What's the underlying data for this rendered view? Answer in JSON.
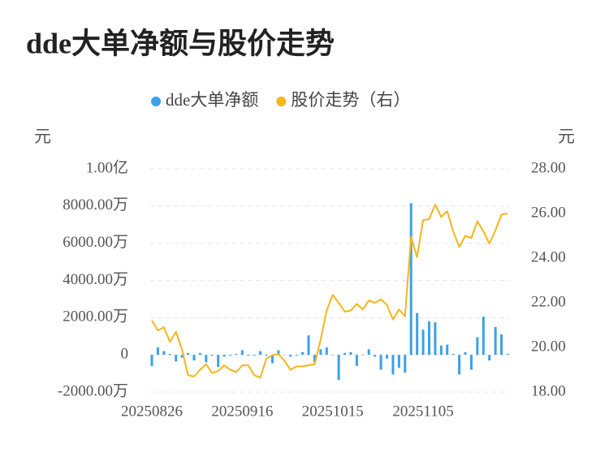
{
  "chart_data": {
    "type": "bar-line",
    "title": "dde大单净额与股价走势",
    "y_label": "元",
    "y2_label": "元",
    "categories": [
      "20250826",
      null,
      null,
      null,
      null,
      null,
      null,
      null,
      null,
      null,
      null,
      null,
      null,
      null,
      null,
      "20250916",
      null,
      null,
      null,
      null,
      null,
      null,
      null,
      null,
      null,
      null,
      null,
      null,
      null,
      null,
      "20251015",
      null,
      null,
      null,
      null,
      null,
      null,
      null,
      null,
      null,
      null,
      null,
      null,
      null,
      null,
      "20251105",
      null,
      null,
      null,
      null,
      null,
      null,
      null,
      null,
      null,
      null,
      null,
      null,
      null,
      null
    ],
    "series": [
      {
        "name": "dde大单净额",
        "color": "#3ba1e8",
        "type": "bar",
        "values": [
          -600,
          400,
          200,
          50,
          -350,
          -150,
          100,
          -300,
          100,
          -400,
          -50,
          -650,
          -100,
          -50,
          50,
          250,
          -50,
          -50,
          200,
          -50,
          -450,
          250,
          0,
          -100,
          -50,
          150,
          1050,
          -400,
          300,
          400,
          0,
          -1350,
          100,
          150,
          -600,
          0,
          300,
          -100,
          -800,
          -200,
          -1050,
          -700,
          -950,
          8150,
          2250,
          1350,
          1800,
          1750,
          500,
          550,
          50,
          -1050,
          150,
          -800,
          950,
          2050,
          -300,
          1500,
          1100,
          50
        ]
      },
      {
        "name": "股价走势（右）",
        "color": "#f5b51b",
        "type": "line",
        "axis": "y2",
        "values": [
          21.2,
          20.76,
          20.9,
          20.25,
          20.7,
          19.9,
          18.76,
          18.7,
          19.0,
          19.25,
          18.85,
          18.95,
          19.2,
          19.0,
          18.9,
          19.2,
          19.2,
          18.75,
          18.65,
          19.5,
          19.65,
          19.7,
          19.4,
          19.0,
          19.15,
          19.15,
          19.2,
          19.25,
          20.35,
          21.65,
          22.35,
          22.0,
          21.6,
          21.65,
          21.95,
          21.7,
          22.1,
          22.0,
          22.15,
          21.9,
          21.25,
          21.7,
          21.4,
          24.95,
          24.05,
          25.7,
          25.75,
          26.4,
          25.85,
          26.1,
          25.2,
          24.5,
          25.0,
          24.9,
          25.65,
          25.2,
          24.65,
          25.25,
          25.95,
          26.0
        ]
      }
    ],
    "ylim": [
      -2000,
      10000
    ],
    "yticks": [
      {
        "value": -2000,
        "label": "-2000.00万"
      },
      0,
      {
        "value": 2000,
        "label": "2000.00万"
      },
      {
        "value": 4000,
        "label": "4000.00万"
      },
      {
        "value": 6000,
        "label": "6000.00万"
      },
      {
        "value": 8000,
        "label": "8000.00万"
      },
      {
        "value": 10000,
        "label": "1.00亿"
      }
    ],
    "y2lim": [
      18,
      28
    ],
    "y2ticks": [
      {
        "value": 18,
        "label": "18.00"
      },
      {
        "value": 20,
        "label": "20.00"
      },
      {
        "value": 22,
        "label": "22.00"
      },
      {
        "value": 24,
        "label": "24.00"
      },
      {
        "value": 26,
        "label": "26.00"
      },
      {
        "value": 28,
        "label": "28.00"
      }
    ],
    "grid": true,
    "legend": "top"
  }
}
